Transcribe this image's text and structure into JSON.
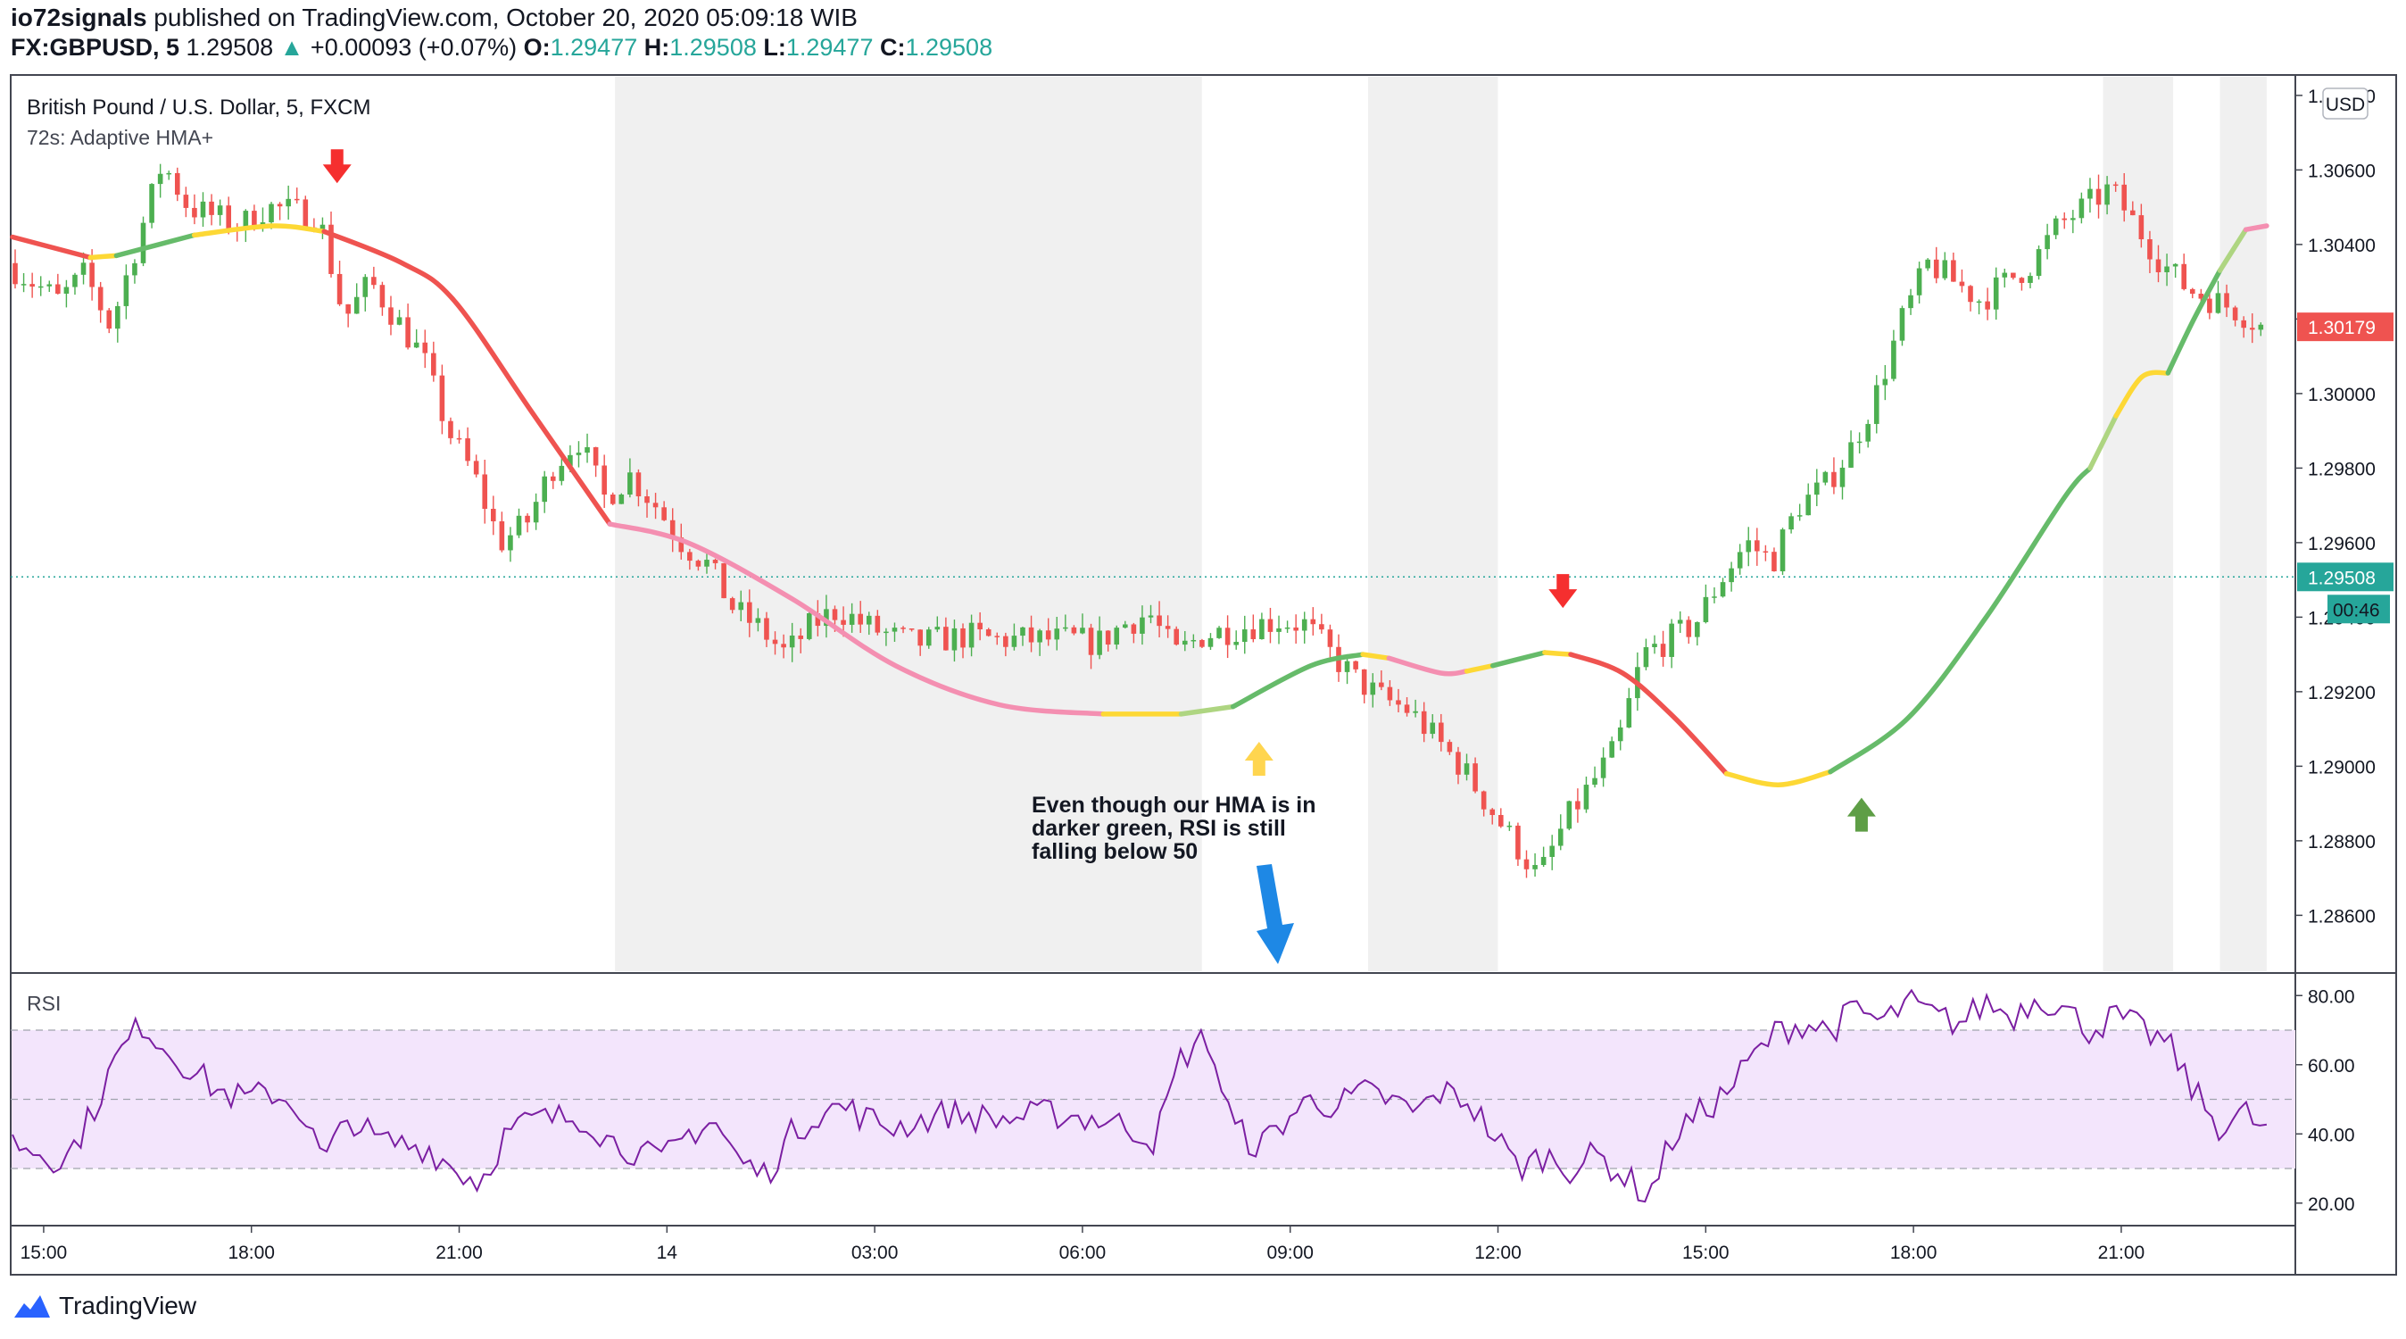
{
  "header": {
    "publisher": "io72signals",
    "published_text": "published on TradingView.com, October 20, 2020 05:09:18 WIB",
    "symbol": "FX:GBPUSD, 5",
    "last": "1.29508",
    "change": "+0.00093 (+0.07%)",
    "open_label": "O:",
    "open": "1.29477",
    "high_label": "H:",
    "high": "1.29508",
    "low_label": "L:",
    "low": "1.29477",
    "close_label": "C:",
    "close": "1.29508"
  },
  "brand": {
    "name": "TradingView",
    "icon": "tradingview-logo-icon"
  },
  "chart_data": {
    "type": "candlestick",
    "title": "British Pound / U.S. Dollar, 5, FXCM",
    "indicator": "72s: Adaptive HMA+",
    "currency": "USD",
    "ylim": [
      1.2845,
      1.3085
    ],
    "yticks": [
      "1.30800",
      "1.30600",
      "1.30400",
      "1.30200",
      "1.30000",
      "1.29800",
      "1.29600",
      "1.29400",
      "1.29200",
      "1.29000",
      "1.28800",
      "1.28600"
    ],
    "last_price_label": "1.30179",
    "current_price_label": "1.29508",
    "countdown": "00:46",
    "xticks": [
      "15:00",
      "18:00",
      "21:00",
      "14",
      "03:00",
      "06:00",
      "09:00",
      "12:00",
      "15:00",
      "18:00",
      "21:00"
    ],
    "price_path": [
      [
        0,
        1.3035
      ],
      [
        2,
        1.3025
      ],
      [
        3,
        1.3032
      ],
      [
        4,
        1.3018
      ],
      [
        5,
        1.304
      ],
      [
        6,
        1.3062
      ],
      [
        7,
        1.305
      ],
      [
        9,
        1.3045
      ],
      [
        10,
        1.305
      ],
      [
        12,
        1.3048
      ],
      [
        13,
        1.302
      ],
      [
        14,
        1.303
      ],
      [
        16,
        1.301
      ],
      [
        17,
        1.299
      ],
      [
        18,
        1.2978
      ],
      [
        19,
        1.296
      ],
      [
        20,
        1.2965
      ],
      [
        21,
        1.298
      ],
      [
        22,
        1.2988
      ],
      [
        23,
        1.2972
      ],
      [
        24,
        1.2978
      ],
      [
        25,
        1.297
      ],
      [
        26,
        1.296
      ],
      [
        27,
        1.2954
      ],
      [
        28,
        1.2942
      ],
      [
        29,
        1.2937
      ],
      [
        30,
        1.293
      ],
      [
        31,
        1.2938
      ],
      [
        32,
        1.2942
      ],
      [
        33,
        1.2938
      ],
      [
        34,
        1.2935
      ],
      [
        35,
        1.2933
      ],
      [
        36,
        1.2934
      ],
      [
        37,
        1.2935
      ],
      [
        38,
        1.2934
      ],
      [
        40,
        1.2934
      ],
      [
        41,
        1.2934
      ],
      [
        42,
        1.2933
      ],
      [
        43,
        1.2938
      ],
      [
        44,
        1.2941
      ],
      [
        45,
        1.293
      ],
      [
        46,
        1.2935
      ],
      [
        48,
        1.2938
      ],
      [
        49,
        1.2939
      ],
      [
        50,
        1.2938
      ],
      [
        51,
        1.293
      ],
      [
        52,
        1.2923
      ],
      [
        53,
        1.2918
      ],
      [
        54,
        1.2915
      ],
      [
        56,
        1.29
      ],
      [
        57,
        1.289
      ],
      [
        58,
        1.288
      ],
      [
        59,
        1.287
      ],
      [
        60,
        1.2885
      ],
      [
        61,
        1.2895
      ],
      [
        62,
        1.2905
      ],
      [
        63,
        1.293
      ],
      [
        64,
        1.2934
      ],
      [
        65,
        1.2938
      ],
      [
        66,
        1.295
      ],
      [
        67,
        1.296
      ],
      [
        68,
        1.2955
      ],
      [
        69,
        1.297
      ],
      [
        70,
        1.2975
      ],
      [
        71,
        1.2985
      ],
      [
        72,
        1.3
      ],
      [
        73,
        1.302
      ],
      [
        74,
        1.3035
      ],
      [
        75,
        1.303
      ],
      [
        76,
        1.3025
      ],
      [
        77,
        1.303
      ],
      [
        78,
        1.3035
      ],
      [
        79,
        1.3045
      ],
      [
        80,
        1.305
      ],
      [
        81,
        1.3055
      ],
      [
        82,
        1.3045
      ],
      [
        83,
        1.3035
      ],
      [
        84,
        1.3028
      ],
      [
        85,
        1.3025
      ],
      [
        86,
        1.3022
      ],
      [
        86.8,
        1.3018
      ]
    ],
    "hma_segments": [
      {
        "color": "#ef5350",
        "points": [
          [
            0,
            1.3042
          ],
          [
            3,
            1.30365
          ]
        ]
      },
      {
        "color": "#fdd835",
        "points": [
          [
            3,
            1.30365
          ],
          [
            4,
            1.3037
          ]
        ]
      },
      {
        "color": "#66bb6a",
        "points": [
          [
            4,
            1.3037
          ],
          [
            7,
            1.30425
          ]
        ]
      },
      {
        "color": "#fdd835",
        "points": [
          [
            7,
            1.30425
          ],
          [
            10,
            1.3045
          ],
          [
            12,
            1.30435
          ]
        ]
      },
      {
        "color": "#ef5350",
        "points": [
          [
            12,
            1.30435
          ],
          [
            15,
            1.3035
          ],
          [
            17,
            1.3025
          ],
          [
            20,
            1.2995
          ],
          [
            23,
            1.2965
          ]
        ]
      },
      {
        "color": "#f48fb1",
        "points": [
          [
            23,
            1.2965
          ],
          [
            26,
            1.296
          ],
          [
            30,
            1.2945
          ],
          [
            34,
            1.2927
          ],
          [
            38,
            1.29165
          ],
          [
            42,
            1.2914
          ]
        ]
      },
      {
        "color": "#fdd835",
        "points": [
          [
            42,
            1.2914
          ],
          [
            45,
            1.2914
          ]
        ]
      },
      {
        "color": "#aed581",
        "points": [
          [
            45,
            1.2914
          ],
          [
            47,
            1.2916
          ]
        ]
      },
      {
        "color": "#66bb6a",
        "points": [
          [
            47,
            1.2916
          ],
          [
            50,
            1.2927
          ],
          [
            52,
            1.293
          ]
        ]
      },
      {
        "color": "#fdd835",
        "points": [
          [
            52,
            1.293
          ],
          [
            53,
            1.2929
          ]
        ]
      },
      {
        "color": "#f48fb1",
        "points": [
          [
            53,
            1.2929
          ],
          [
            55,
            1.2925
          ],
          [
            56,
            1.29255
          ]
        ]
      },
      {
        "color": "#fdd835",
        "points": [
          [
            56,
            1.29255
          ],
          [
            57,
            1.2927
          ]
        ]
      },
      {
        "color": "#66bb6a",
        "points": [
          [
            57,
            1.2927
          ],
          [
            59,
            1.29305
          ]
        ]
      },
      {
        "color": "#fdd835",
        "points": [
          [
            59,
            1.29305
          ],
          [
            60,
            1.293
          ]
        ]
      },
      {
        "color": "#ef5350",
        "points": [
          [
            60,
            1.293
          ],
          [
            62,
            1.2925
          ],
          [
            64,
            1.2913
          ],
          [
            66,
            1.2898
          ]
        ]
      },
      {
        "color": "#fdd835",
        "points": [
          [
            66,
            1.2898
          ],
          [
            68,
            1.2895
          ],
          [
            70,
            1.28985
          ]
        ]
      },
      {
        "color": "#66bb6a",
        "points": [
          [
            70,
            1.28985
          ],
          [
            73,
            1.2913
          ],
          [
            76,
            1.294
          ],
          [
            79,
            1.2972
          ],
          [
            80,
            1.298
          ]
        ]
      },
      {
        "color": "#aed581",
        "points": [
          [
            80,
            1.298
          ],
          [
            81,
            1.2994
          ]
        ]
      },
      {
        "color": "#fdd835",
        "points": [
          [
            81,
            1.2994
          ],
          [
            82,
            1.30045
          ],
          [
            83,
            1.30055
          ]
        ]
      },
      {
        "color": "#66bb6a",
        "points": [
          [
            83,
            1.30055
          ],
          [
            84,
            1.302
          ],
          [
            85,
            1.3033
          ]
        ]
      },
      {
        "color": "#aed581",
        "points": [
          [
            85,
            1.3033
          ],
          [
            86,
            1.3044
          ]
        ]
      },
      {
        "color": "#f48fb1",
        "points": [
          [
            86,
            1.3044
          ],
          [
            86.8,
            1.3045
          ]
        ]
      }
    ],
    "arrows": [
      {
        "x": 12.5,
        "y": 1.3061,
        "dir": "down",
        "color": "#f52f2f"
      },
      {
        "x": 48,
        "y": 1.2902,
        "dir": "up",
        "color": "#ffd54f"
      },
      {
        "x": 59.7,
        "y": 1.2947,
        "dir": "down",
        "color": "#f52f2f"
      },
      {
        "x": 71.2,
        "y": 1.2887,
        "dir": "up",
        "color": "#5e9e46"
      }
    ],
    "annotation": {
      "lines": [
        "Even though our HMA is in",
        "darker green, RSI is still",
        "falling below 50"
      ],
      "arrow_color": "#1e88e5"
    },
    "session_shading": [
      [
        23.2,
        45.8
      ],
      [
        52.2,
        57.2
      ],
      [
        80.5,
        83.2
      ],
      [
        85,
        86.8
      ]
    ],
    "rsi": {
      "label": "RSI",
      "yticks": [
        "80.00",
        "60.00",
        "40.00",
        "20.00"
      ],
      "ylim": [
        14,
        86
      ],
      "band": [
        30,
        70
      ],
      "midline": 50,
      "values": [
        [
          0,
          38
        ],
        [
          2,
          32
        ],
        [
          3,
          45
        ],
        [
          4,
          62
        ],
        [
          5,
          72
        ],
        [
          6,
          64
        ],
        [
          7,
          58
        ],
        [
          8,
          52
        ],
        [
          9,
          50
        ],
        [
          10,
          52
        ],
        [
          11,
          48
        ],
        [
          12,
          32
        ],
        [
          13,
          45
        ],
        [
          14,
          38
        ],
        [
          16,
          36
        ],
        [
          17,
          30
        ],
        [
          18,
          26
        ],
        [
          19,
          40
        ],
        [
          20,
          44
        ],
        [
          22,
          45
        ],
        [
          23,
          38
        ],
        [
          24,
          35
        ],
        [
          25,
          32
        ],
        [
          26,
          40
        ],
        [
          27,
          44
        ],
        [
          28,
          32
        ],
        [
          29,
          28
        ],
        [
          30,
          40
        ],
        [
          31,
          46
        ],
        [
          32,
          48
        ],
        [
          33,
          44
        ],
        [
          34,
          42
        ],
        [
          36,
          46
        ],
        [
          38,
          44
        ],
        [
          40,
          46
        ],
        [
          42,
          44
        ],
        [
          43,
          42
        ],
        [
          44,
          38
        ],
        [
          45,
          62
        ],
        [
          46,
          68
        ],
        [
          47,
          42
        ],
        [
          48,
          36
        ],
        [
          49,
          44
        ],
        [
          50,
          50
        ],
        [
          51,
          48
        ],
        [
          52,
          52
        ],
        [
          53,
          50
        ],
        [
          54,
          46
        ],
        [
          55,
          52
        ],
        [
          56,
          50
        ],
        [
          57,
          40
        ],
        [
          58,
          30
        ],
        [
          59,
          34
        ],
        [
          60,
          30
        ],
        [
          61,
          34
        ],
        [
          62,
          28
        ],
        [
          63,
          22
        ],
        [
          64,
          40
        ],
        [
          65,
          46
        ],
        [
          66,
          52
        ],
        [
          67,
          62
        ],
        [
          68,
          70
        ],
        [
          69,
          72
        ],
        [
          70,
          70
        ],
        [
          71,
          76
        ],
        [
          72,
          72
        ],
        [
          73,
          78
        ],
        [
          74,
          74
        ],
        [
          75,
          72
        ],
        [
          76,
          78
        ],
        [
          77,
          74
        ],
        [
          78,
          80
        ],
        [
          79,
          76
        ],
        [
          80,
          70
        ],
        [
          81,
          74
        ],
        [
          82,
          70
        ],
        [
          83,
          66
        ],
        [
          84,
          52
        ],
        [
          85,
          42
        ],
        [
          86,
          46
        ],
        [
          86.8,
          40
        ]
      ]
    }
  }
}
